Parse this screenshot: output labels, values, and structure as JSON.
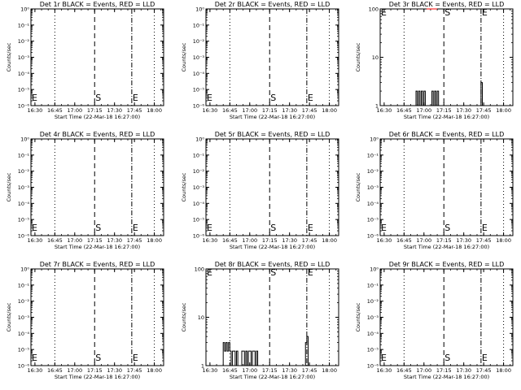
{
  "colors": {
    "events": "#000000",
    "lld": "#ff0000",
    "background": "#ffffff"
  },
  "panel_layout": {
    "columns": 3,
    "rows": 3
  },
  "chart_data": [
    {
      "type": "line",
      "title": "Det 1r BLACK = Events, RED = LLD",
      "ylabel": "Counts/sec",
      "xlabel": "Start Time (22-Mar-18 16:27:00)",
      "yscale": "log",
      "ylim": [
        1,
        1e-06
      ],
      "yticks": [
        "10⁻⁶",
        "10⁻⁵",
        "10⁻⁴",
        "10⁻³",
        "10⁻²",
        "10⁻¹",
        "10⁰"
      ],
      "xlim": [
        "16:27",
        "18:07"
      ],
      "xticks": [
        "16:30",
        "16:45",
        "17:00",
        "17:15",
        "17:30",
        "17:45",
        "18:00"
      ],
      "markers": {
        "E_start": "16:28",
        "S": "17:15",
        "E_end": "17:43"
      },
      "series": [],
      "grid": false
    },
    {
      "type": "line",
      "title": "Det 2r BLACK = Events, RED = LLD",
      "ylabel": "Counts/sec",
      "xlabel": "Start Time (22-Mar-18 16:27:00)",
      "yscale": "log",
      "ylim": [
        1,
        1e-06
      ],
      "yticks": [
        "10⁻⁶",
        "10⁻⁵",
        "10⁻⁴",
        "10⁻³",
        "10⁻²",
        "10⁻¹",
        "10⁰"
      ],
      "xlim": [
        "16:27",
        "18:07"
      ],
      "xticks": [
        "16:30",
        "16:45",
        "17:00",
        "17:15",
        "17:30",
        "17:45",
        "18:00"
      ],
      "markers": {
        "E_start": "16:28",
        "S": "17:15",
        "E_end": "17:43"
      },
      "series": [],
      "grid": false
    },
    {
      "type": "line",
      "title": "Det 3r BLACK = Events, RED = LLD",
      "ylabel": "Counts/sec",
      "xlabel": "Start Time (22-Mar-18 16:27:00)",
      "yscale": "log",
      "ylim": [
        1,
        100
      ],
      "yticks": [
        "1",
        "10",
        "100"
      ],
      "xlim": [
        "16:27",
        "18:07"
      ],
      "xticks": [
        "16:30",
        "16:45",
        "17:00",
        "17:15",
        "17:30",
        "17:45",
        "18:00"
      ],
      "markers": {
        "E_start": "16:28",
        "S": "17:15",
        "E_end": "17:43"
      },
      "series": [
        {
          "color": "#000000",
          "x": [
            "16:27",
            "16:53",
            "16:54",
            "16:55",
            "16:56",
            "16:57",
            "16:58",
            "16:59",
            "17:00",
            "17:01",
            "17:02",
            "17:03",
            "17:04",
            "17:05",
            "17:06",
            "17:07",
            "17:08",
            "17:09",
            "17:10",
            "17:11",
            "17:12",
            "17:42",
            "17:43",
            "17:44",
            "17:45"
          ],
          "values": [
            1,
            1,
            2,
            1,
            2,
            1,
            2,
            1,
            2,
            1,
            1,
            1,
            1,
            1,
            2,
            1,
            2,
            1,
            2,
            1,
            1,
            1,
            3,
            1,
            1
          ]
        },
        {
          "color": "#ff0000",
          "x": [
            "17:02",
            "17:10"
          ],
          "values": [
            100,
            100
          ]
        }
      ],
      "grid": false
    },
    {
      "type": "line",
      "title": "Det 4r BLACK = Events, RED = LLD",
      "ylabel": "Counts/sec",
      "xlabel": "Start Time (22-Mar-18 16:27:00)",
      "yscale": "log",
      "ylim": [
        1,
        1e-06
      ],
      "yticks": [
        "10⁻⁶",
        "10⁻⁵",
        "10⁻⁴",
        "10⁻³",
        "10⁻²",
        "10⁻¹",
        "10⁰"
      ],
      "xlim": [
        "16:27",
        "18:07"
      ],
      "xticks": [
        "16:30",
        "16:45",
        "17:00",
        "17:15",
        "17:30",
        "17:45",
        "18:00"
      ],
      "markers": {
        "E_start": "16:28",
        "S": "17:15",
        "E_end": "17:43"
      },
      "series": [],
      "grid": false
    },
    {
      "type": "line",
      "title": "Det 5r BLACK = Events, RED = LLD",
      "ylabel": "Counts/sec",
      "xlabel": "Start Time (22-Mar-18 16:27:00)",
      "yscale": "log",
      "ylim": [
        1,
        1e-06
      ],
      "yticks": [
        "10⁻⁶",
        "10⁻⁵",
        "10⁻⁴",
        "10⁻³",
        "10⁻²",
        "10⁻¹",
        "10⁰"
      ],
      "xlim": [
        "16:27",
        "18:07"
      ],
      "xticks": [
        "16:30",
        "16:45",
        "17:00",
        "17:15",
        "17:30",
        "17:45",
        "18:00"
      ],
      "markers": {
        "E_start": "16:28",
        "S": "17:15",
        "E_end": "17:43"
      },
      "series": [],
      "grid": false
    },
    {
      "type": "line",
      "title": "Det 6r BLACK = Events, RED = LLD",
      "ylabel": "Counts/sec",
      "xlabel": "Start Time (22-Mar-18 16:27:00)",
      "yscale": "log",
      "ylim": [
        1,
        1e-06
      ],
      "yticks": [
        "10⁻⁶",
        "10⁻⁵",
        "10⁻⁴",
        "10⁻³",
        "10⁻²",
        "10⁻¹",
        "10⁰"
      ],
      "xlim": [
        "16:27",
        "18:07"
      ],
      "xticks": [
        "16:30",
        "16:45",
        "17:00",
        "17:15",
        "17:30",
        "17:45",
        "18:00"
      ],
      "markers": {
        "E_start": "16:28",
        "S": "17:15",
        "E_end": "17:43"
      },
      "series": [],
      "grid": false
    },
    {
      "type": "line",
      "title": "Det 7r BLACK = Events, RED = LLD",
      "ylabel": "Counts/sec",
      "xlabel": "Start Time (22-Mar-18 16:27:00)",
      "yscale": "log",
      "ylim": [
        1,
        1e-06
      ],
      "yticks": [
        "10⁻⁶",
        "10⁻⁵",
        "10⁻⁴",
        "10⁻³",
        "10⁻²",
        "10⁻¹",
        "10⁰"
      ],
      "xlim": [
        "16:27",
        "18:07"
      ],
      "xticks": [
        "16:30",
        "16:45",
        "17:00",
        "17:15",
        "17:30",
        "17:45",
        "18:00"
      ],
      "markers": {
        "E_start": "16:28",
        "S": "17:15",
        "E_end": "17:43"
      },
      "series": [],
      "grid": false
    },
    {
      "type": "line",
      "title": "Det 8r BLACK = Events, RED = LLD",
      "ylabel": "Counts/sec",
      "xlabel": "Start Time (22-Mar-18 16:27:00)",
      "yscale": "log",
      "ylim": [
        1,
        100
      ],
      "yticks": [
        "1",
        "10",
        "100"
      ],
      "xlim": [
        "16:27",
        "18:07"
      ],
      "xticks": [
        "16:30",
        "16:45",
        "17:00",
        "17:15",
        "17:30",
        "17:45",
        "18:00"
      ],
      "markers": {
        "E_start": "16:28",
        "S": "17:15",
        "E_end": "17:43"
      },
      "series": [
        {
          "color": "#000000",
          "x": [
            "16:27",
            "16:39",
            "16:40",
            "16:41",
            "16:42",
            "16:43",
            "16:44",
            "16:45",
            "16:46",
            "16:47",
            "16:48",
            "16:49",
            "16:50",
            "16:51",
            "16:52",
            "16:53",
            "16:54",
            "16:55",
            "16:56",
            "16:57",
            "16:58",
            "16:59",
            "17:00",
            "17:01",
            "17:02",
            "17:03",
            "17:04",
            "17:05",
            "17:06",
            "17:07",
            "17:41",
            "17:42",
            "17:43",
            "17:44",
            "17:45"
          ],
          "values": [
            1,
            1,
            3,
            2,
            3,
            2,
            3,
            2,
            1,
            2,
            2,
            1,
            2,
            1,
            1,
            1,
            2,
            2,
            1,
            2,
            1,
            2,
            2,
            1,
            2,
            2,
            1,
            2,
            1,
            1,
            1,
            3,
            4,
            1,
            1
          ]
        }
      ],
      "grid": false
    },
    {
      "type": "line",
      "title": "Det 9r BLACK = Events, RED = LLD",
      "ylabel": "Counts/sec",
      "xlabel": "Start Time (22-Mar-18 16:27:00)",
      "yscale": "log",
      "ylim": [
        1,
        1e-06
      ],
      "yticks": [
        "10⁻⁶",
        "10⁻⁵",
        "10⁻⁴",
        "10⁻³",
        "10⁻²",
        "10⁻¹",
        "10⁰"
      ],
      "xlim": [
        "16:27",
        "18:07"
      ],
      "xticks": [
        "16:30",
        "16:45",
        "17:00",
        "17:15",
        "17:30",
        "17:45",
        "18:00"
      ],
      "markers": {
        "E_start": "16:28",
        "S": "17:15",
        "E_end": "17:43"
      },
      "series": [],
      "grid": false
    }
  ]
}
